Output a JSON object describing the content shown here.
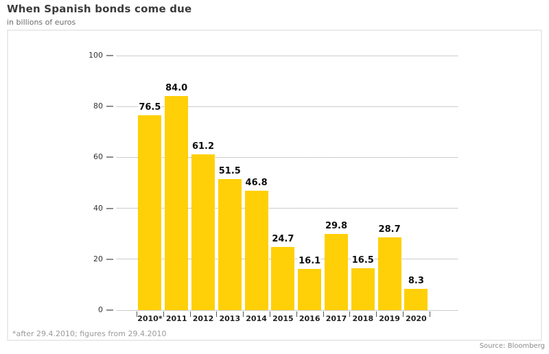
{
  "header": {
    "title": "When Spanish bonds come due",
    "subtitle": "in billions of euros"
  },
  "chart_data": {
    "type": "bar",
    "title": "When Spanish bonds come due",
    "subtitle": "in billions of euros",
    "categories": [
      "2010*",
      "2011",
      "2012",
      "2013",
      "2014",
      "2015",
      "2016",
      "2017",
      "2018",
      "2019",
      "2020"
    ],
    "values": [
      76.5,
      84.0,
      61.2,
      51.5,
      46.8,
      24.7,
      16.1,
      29.8,
      16.5,
      28.7,
      8.3
    ],
    "value_labels_text": [
      "76.5",
      "84.0",
      "61.2",
      "51.5",
      "46.8",
      "24.7",
      "16.1",
      "29.8",
      "16.5",
      "28.7",
      "8.3"
    ],
    "xlabel": "",
    "ylabel": "in billions of euros",
    "ylim": [
      0,
      100
    ],
    "yticks": [
      0,
      20,
      40,
      60,
      80,
      100
    ],
    "grid": "horizontal-dotted",
    "legend": "none",
    "bar_color": "#FFD007",
    "grid_color": "#9a9a9a",
    "value_label_color": "#0d0d0d"
  },
  "footer": {
    "footnote": "*after 29.4.2010; figures from 29.4.2010",
    "source": "Source: Bloomberg"
  }
}
